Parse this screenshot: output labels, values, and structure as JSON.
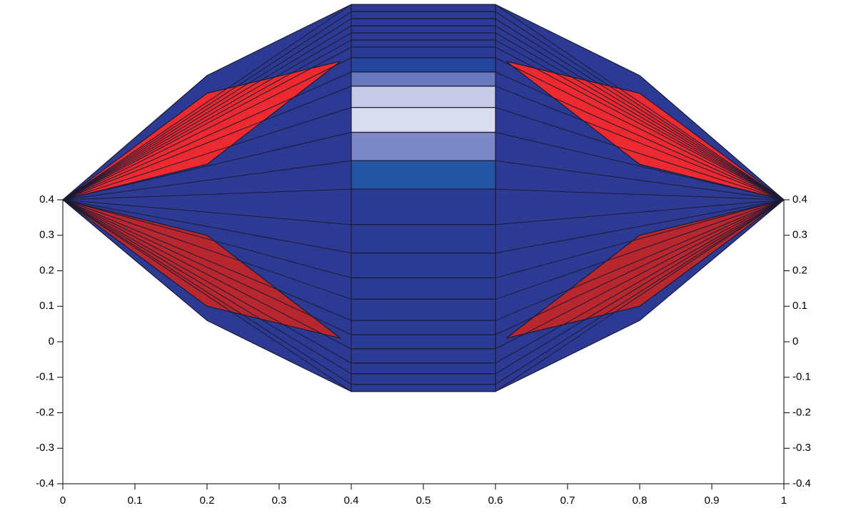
{
  "chart_data": {
    "type": "mesh",
    "xlim": [
      0,
      1
    ],
    "ylim": [
      -0.4,
      0.4
    ],
    "xticks": [
      0,
      0.1,
      0.2,
      0.3,
      0.4,
      0.5,
      0.6,
      0.7,
      0.8,
      0.9,
      1
    ],
    "yticks": [
      0.4,
      0.3,
      0.2,
      0.1,
      0,
      -0.1,
      -0.2,
      -0.3,
      -0.4
    ],
    "edge_color": "#1b1b33",
    "polygons": [
      {
        "color": "#2c3a94",
        "x": [
          0,
          0.2,
          0.4,
          0.6,
          0.8,
          1,
          0.8,
          0.6,
          0.4,
          0.2
        ],
        "y": [
          0.4,
          0.75,
          0.95,
          0.95,
          0.75,
          0.4,
          0.06,
          -0.14,
          -0.14,
          0.06
        ]
      },
      {
        "color": "#ec2a30",
        "x": [
          0,
          0.2,
          0.385,
          0.2
        ],
        "y": [
          0.4,
          0.7,
          0.79,
          0.5
        ]
      },
      {
        "color": "#ec2a30",
        "x": [
          1,
          0.8,
          0.615,
          0.8
        ],
        "y": [
          0.4,
          0.7,
          0.79,
          0.5
        ]
      },
      {
        "color": "#b8262e",
        "x": [
          0,
          0.2,
          0.385,
          0.2
        ],
        "y": [
          0.4,
          0.3,
          0.01,
          0.1
        ]
      },
      {
        "color": "#b8262e",
        "x": [
          1,
          0.8,
          0.615,
          0.8
        ],
        "y": [
          0.4,
          0.3,
          0.01,
          0.1
        ]
      }
    ],
    "tips": {
      "x": [
        0,
        1
      ],
      "y": [
        0.4,
        0.4
      ]
    },
    "band": {
      "x": [
        0.4,
        0.6
      ],
      "edges": [
        0.95,
        0.93,
        0.91,
        0.89,
        0.87,
        0.85,
        0.83,
        0.8,
        0.76,
        0.72,
        0.66,
        0.59,
        0.51,
        0.43,
        0.33,
        0.25,
        0.18,
        0.12,
        0.06,
        0.02,
        -0.02,
        -0.06,
        -0.09,
        -0.12,
        -0.14
      ],
      "colors": [
        "#2b3a94",
        "#2b3a94",
        "#2b3a94",
        "#2b3a94",
        "#2b3a94",
        "#2b3a94",
        "#2b3a94",
        "#24469c",
        "#6a78c0",
        "#c8cbe8",
        "#d9dcef",
        "#7c88c8",
        "#2454a4",
        "#2c3c96",
        "#2c3c96",
        "#2c3c96",
        "#2c3c96",
        "#2c3c96",
        "#2c3c96",
        "#2c3c96",
        "#2c3c96",
        "#2c3c96",
        "#2c3c96",
        "#2c3c96"
      ]
    }
  }
}
